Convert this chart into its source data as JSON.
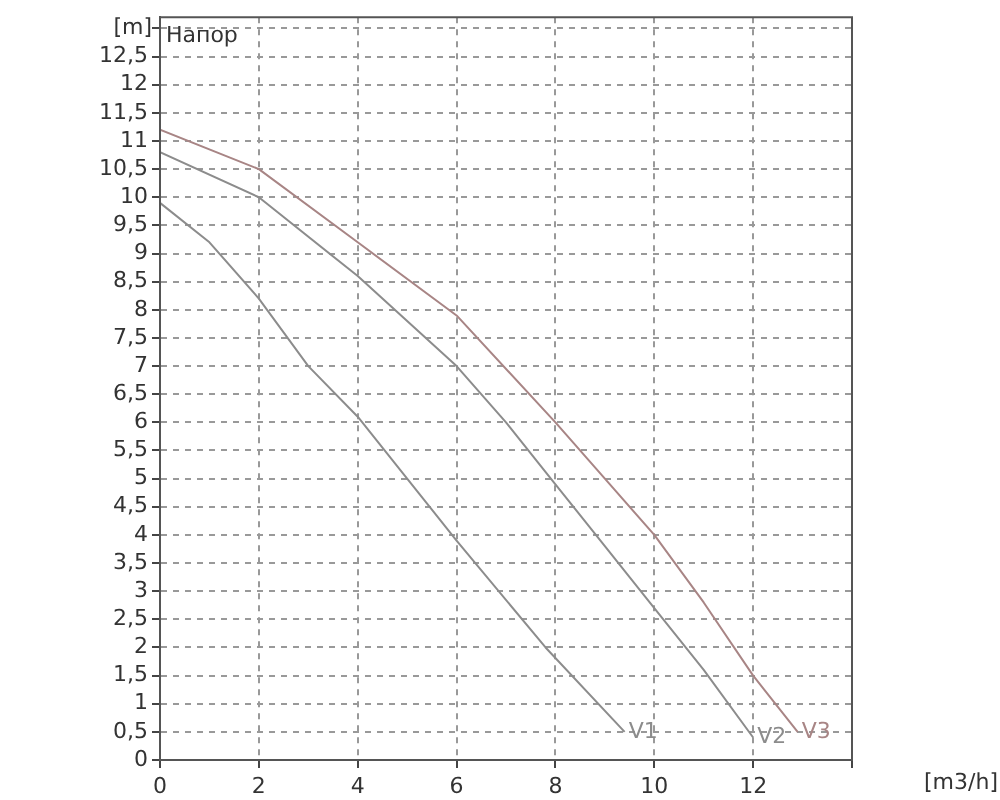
{
  "chart_data": {
    "type": "line",
    "xlabel": "[m3/h]",
    "ylabel": "[m]",
    "annotations": [
      "Напор"
    ],
    "xlim": [
      0,
      14
    ],
    "xticks": [
      0,
      2,
      4,
      6,
      8,
      10,
      12,
      {
        "value": 14,
        "label": null
      }
    ],
    "ylim": [
      0,
      13.2
    ],
    "yticks": [
      0,
      {
        "value": 0.5,
        "label": "0,5"
      },
      1,
      {
        "value": 1.5,
        "label": "1,5"
      },
      2,
      {
        "value": 2.5,
        "label": "2,5"
      },
      3,
      {
        "value": 3.5,
        "label": "3,5"
      },
      4,
      {
        "value": 4.5,
        "label": "4,5"
      },
      5,
      {
        "value": 5.5,
        "label": "5,5"
      },
      6,
      {
        "value": 6.5,
        "label": "6,5"
      },
      7,
      {
        "value": 7.5,
        "label": "7,5"
      },
      8,
      {
        "value": 8.5,
        "label": "8,5"
      },
      9,
      {
        "value": 9.5,
        "label": "9,5"
      },
      10,
      {
        "value": 10.5,
        "label": "10,5"
      },
      11,
      {
        "value": 11.5,
        "label": "11,5"
      },
      12,
      {
        "value": 12.5,
        "label": "12,5"
      },
      {
        "value": 13,
        "label": null
      }
    ],
    "grid": true,
    "legend": false,
    "marker": "none",
    "line_style": "solid",
    "series": [
      {
        "name": "V1",
        "color": "#8c8c8c",
        "x": [
          0,
          1,
          2,
          3,
          4,
          5,
          6,
          7.8,
          9.4
        ],
        "values": [
          9.9,
          9.2,
          8.2,
          7.0,
          6.1,
          5.0,
          3.9,
          2.0,
          0.5
        ]
      },
      {
        "name": "V2",
        "color": "#8c8c8c",
        "x": [
          0,
          2,
          4,
          6,
          7,
          8,
          9,
          10,
          11,
          12
        ],
        "values": [
          10.8,
          10.0,
          8.6,
          7.0,
          6.0,
          4.9,
          3.8,
          2.7,
          1.6,
          0.4
        ]
      },
      {
        "name": "V3",
        "color": "#a88585",
        "x": [
          0,
          2,
          4,
          6,
          8,
          9,
          10,
          11,
          12,
          12.9
        ],
        "values": [
          11.2,
          10.5,
          9.2,
          7.9,
          6.0,
          5.0,
          4.0,
          2.8,
          1.5,
          0.5
        ]
      }
    ]
  }
}
